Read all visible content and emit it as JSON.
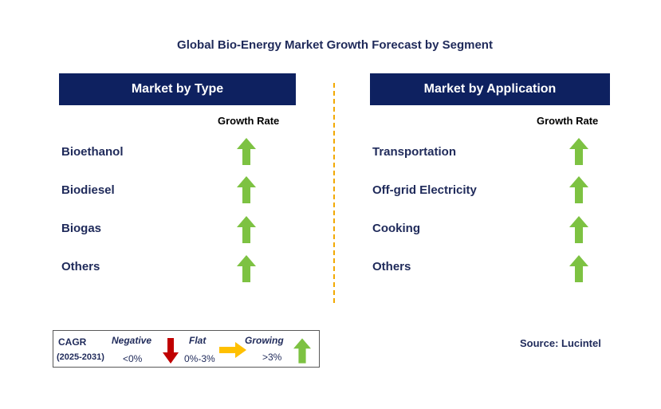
{
  "title": "Global Bio-Energy Market Growth Forecast by Segment",
  "type_panel": {
    "header": "Market by Type",
    "growth_label": "Growth Rate",
    "items": [
      "Bioethanol",
      "Biodiesel",
      "Biogas",
      "Others"
    ]
  },
  "application_panel": {
    "header": "Market by Application",
    "growth_label": "Growth Rate",
    "items": [
      "Transportation",
      "Off-grid Electricity",
      "Cooking",
      "Others"
    ]
  },
  "legend": {
    "cagr": "CAGR",
    "period": "(2025-2031)",
    "negative": "Negative",
    "negative_range": "<0%",
    "flat": "Flat",
    "flat_range": "0%-3%",
    "growing": "Growing",
    "growing_range": ">3%"
  },
  "source": "Source: Lucintel",
  "colors": {
    "header_bg": "#0e2160",
    "arrow_up": "#7dc242",
    "arrow_down": "#c00000",
    "arrow_flat": "#ffc000",
    "divider": "#f2a900"
  }
}
